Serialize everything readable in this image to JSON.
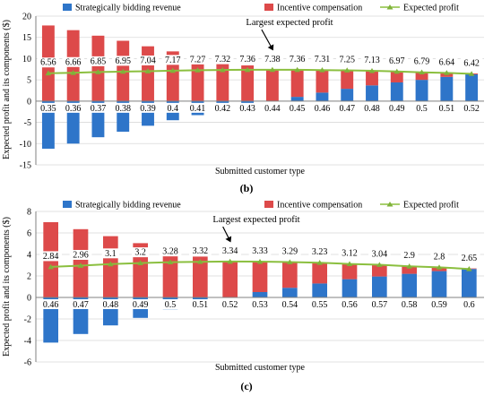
{
  "colors": {
    "strategic": "#2e75c9",
    "incentive": "#dd4a4a",
    "profit": "#8bbf3f",
    "profit_marker": "#7fb23a",
    "grid": "#d9d9d9",
    "axis": "#808080"
  },
  "legend": [
    "Strategically bidding revenue",
    "Incentive compensation",
    "Expected profit"
  ],
  "chart_data": [
    {
      "type": "bar",
      "panel_label": "(b)",
      "xlabel": "Submitted customer type",
      "ylabel": "Expected profit and its components ($)",
      "ylim": [
        -15,
        20
      ],
      "yticks": [
        -15,
        -10,
        -5,
        0,
        5,
        10,
        15,
        20
      ],
      "grid": true,
      "legend_position": "top",
      "categories": [
        "0.35",
        "0.36",
        "0.37",
        "0.38",
        "0.39",
        "0.4",
        "0.41",
        "0.42",
        "0.43",
        "0.44",
        "0.45",
        "0.46",
        "0.47",
        "0.48",
        "0.49",
        "0.5",
        "0.51",
        "0.52"
      ],
      "series": [
        {
          "name": "Strategically bidding revenue",
          "values": [
            -11.2,
            -10.0,
            -8.5,
            -7.2,
            -5.8,
            -4.5,
            -3.3,
            -2.1,
            -1.0,
            0,
            1.0,
            2.0,
            2.9,
            3.7,
            4.4,
            5.0,
            5.7,
            6.3
          ]
        },
        {
          "name": "Incentive compensation",
          "values": [
            17.8,
            16.7,
            15.4,
            14.2,
            12.9,
            11.7,
            10.6,
            9.4,
            8.4,
            7.4,
            6.4,
            5.3,
            4.4,
            3.4,
            2.6,
            1.8,
            1.0,
            0.2
          ]
        },
        {
          "name": "Expected profit",
          "type": "line",
          "values": [
            6.56,
            6.66,
            6.85,
            6.95,
            7.04,
            7.17,
            7.27,
            7.32,
            7.36,
            7.38,
            7.36,
            7.31,
            7.25,
            7.13,
            6.97,
            6.79,
            6.64,
            6.42
          ]
        }
      ],
      "profit_labels": [
        "6.56",
        "6.66",
        "6.85",
        "6.95",
        "7.04",
        "7.17",
        "7.27",
        "7.32",
        "7.36",
        "7.38",
        "7.36",
        "7.31",
        "7.25",
        "7.13",
        "6.97",
        "6.79",
        "6.64",
        "6.42"
      ],
      "annotation": {
        "text": "Largest expected profit",
        "target_index": 9
      }
    },
    {
      "type": "bar",
      "panel_label": "(c)",
      "xlabel": "Submitted customer type",
      "ylabel": "Expected profit and its components ($)",
      "ylim": [
        -6,
        8
      ],
      "yticks": [
        -6,
        -4,
        -2,
        0,
        2,
        4,
        6,
        8
      ],
      "grid": true,
      "legend_position": "top",
      "categories": [
        "0.46",
        "0.47",
        "0.48",
        "0.49",
        "0.5",
        "0.51",
        "0.52",
        "0.53",
        "0.54",
        "0.55",
        "0.56",
        "0.57",
        "0.58",
        "0.59",
        "0.6"
      ],
      "series": [
        {
          "name": "Strategically bidding revenue",
          "values": [
            -4.2,
            -3.4,
            -2.6,
            -1.9,
            -1.1,
            -0.5,
            0,
            0.5,
            0.9,
            1.3,
            1.7,
            1.95,
            2.2,
            2.45,
            2.65
          ]
        },
        {
          "name": "Incentive compensation",
          "values": [
            7.0,
            6.35,
            5.7,
            5.05,
            4.35,
            3.8,
            3.34,
            2.8,
            2.4,
            1.95,
            1.45,
            1.1,
            0.7,
            0.35,
            0.05
          ]
        },
        {
          "name": "Expected profit",
          "type": "line",
          "values": [
            2.84,
            2.96,
            3.1,
            3.2,
            3.28,
            3.32,
            3.34,
            3.33,
            3.29,
            3.23,
            3.12,
            3.04,
            2.9,
            2.8,
            2.65
          ]
        }
      ],
      "profit_labels": [
        "2.84",
        "2.96",
        "3.1",
        "3.2",
        "3.28",
        "3.32",
        "3.34",
        "3.33",
        "3.29",
        "3.23",
        "3.12",
        "3.04",
        "2.9",
        "2.8",
        "2.65"
      ],
      "annotation": {
        "text": "Largest expected profit",
        "target_index": 6
      }
    }
  ]
}
